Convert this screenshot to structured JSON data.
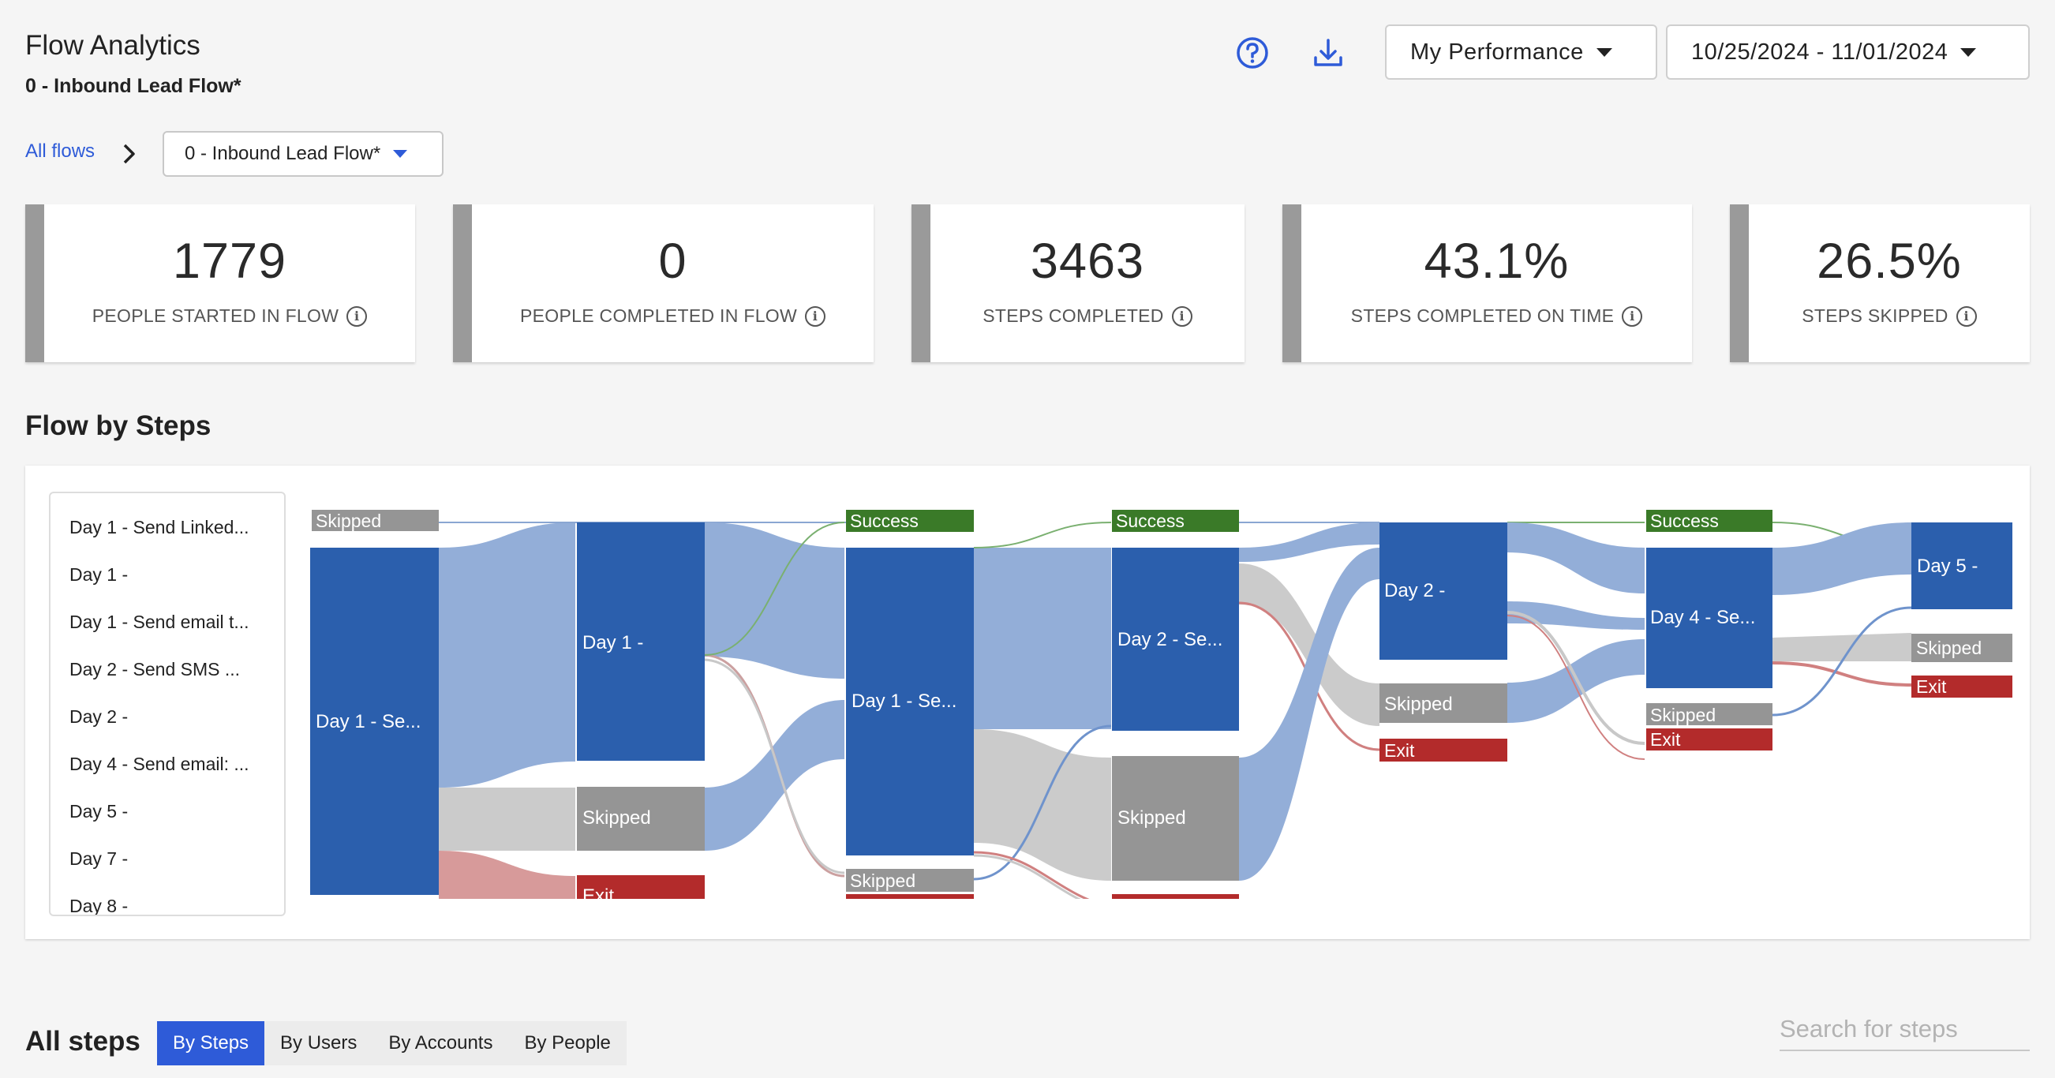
{
  "header": {
    "title": "Flow Analytics",
    "subtitle": "0 - Inbound Lead Flow*",
    "performance_select": "My Performance",
    "date_range": "10/25/2024 - 11/01/2024",
    "accent": "#2e5bd8"
  },
  "breadcrumb": {
    "all_flows": "All flows",
    "current_flow": "0 - Inbound Lead Flow*"
  },
  "kpis": [
    {
      "value": "1779",
      "label": "PEOPLE STARTED IN FLOW"
    },
    {
      "value": "0",
      "label": "PEOPLE COMPLETED IN FLOW"
    },
    {
      "value": "3463",
      "label": "STEPS COMPLETED"
    },
    {
      "value": "43.1%",
      "label": "STEPS COMPLETED ON TIME"
    },
    {
      "value": "26.5%",
      "label": "STEPS SKIPPED"
    }
  ],
  "flow_by_steps": {
    "title": "Flow by Steps",
    "steps": [
      "Day 1 - Send Linked...",
      "Day 1 -",
      "Day 1 - Send email t...",
      "Day 2 - Send SMS ...",
      "Day 2 -",
      "Day 4 - Send email: ...",
      "Day 5 -",
      "Day 7 -",
      "Day 8 -"
    ],
    "node_labels": {
      "skipped": "Skipped",
      "success": "Success",
      "exit": "Exit",
      "day1_a": "Day 1 - Se...",
      "day1_b": "Day 1 -",
      "day1_c": "Day 1 - Se...",
      "day2_a": "Day 2 - Se...",
      "day2_b": "Day 2 -",
      "day4": "Day 4 - Se...",
      "day5": "Day 5 -"
    },
    "colors": {
      "step": "#2b5fad",
      "skipped": "#959595",
      "success": "#3a7a28",
      "exit": "#b32b2b"
    }
  },
  "all_steps": {
    "title": "All steps",
    "tabs": [
      "By Steps",
      "By Users",
      "By Accounts",
      "By People"
    ],
    "active_tab": "By Steps",
    "search_placeholder": "Search for steps"
  }
}
